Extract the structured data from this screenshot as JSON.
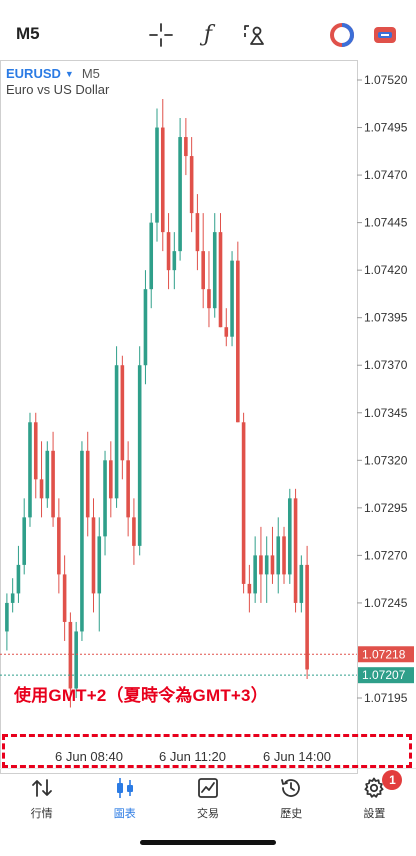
{
  "header": {
    "timeframe": "M5",
    "tools": [
      "crosshair-icon",
      "indicator-f-icon",
      "objects-icon",
      "one-click-trading-icon",
      "trade-icon"
    ],
    "indicator_glyph": "ƒ"
  },
  "chart": {
    "symbol": "EURUSD",
    "timeframe": "M5",
    "description": "Euro vs US Dollar"
  },
  "colors": {
    "bull": "#2f9f8a",
    "bear": "#e0514a",
    "bid_line": "#e0514a",
    "ask_line": "#2f9f8a",
    "accent": "#2b7be4",
    "annotation": "#e8001c"
  },
  "chart_data": {
    "type": "candlestick",
    "y_ticks": [
      "1.07520",
      "1.07495",
      "1.07470",
      "1.07445",
      "1.07420",
      "1.07395",
      "1.07370",
      "1.07345",
      "1.07320",
      "1.07295",
      "1.07270",
      "1.07245",
      "1.07195"
    ],
    "ylim": [
      1.0718,
      1.0753
    ],
    "x_ticks": [
      "6 Jun 08:40",
      "6 Jun 11:20",
      "6 Jun 14:00"
    ],
    "bid_price": "1.07218",
    "ask_price": "1.07207",
    "candles": [
      [
        1.0723,
        1.0725,
        1.0722,
        1.07245
      ],
      [
        1.07245,
        1.07258,
        1.0724,
        1.0725
      ],
      [
        1.0725,
        1.07275,
        1.07245,
        1.07265
      ],
      [
        1.07265,
        1.073,
        1.0726,
        1.0729
      ],
      [
        1.0729,
        1.07345,
        1.07285,
        1.0734
      ],
      [
        1.0734,
        1.07345,
        1.073,
        1.0731
      ],
      [
        1.0731,
        1.0733,
        1.0729,
        1.073
      ],
      [
        1.073,
        1.0733,
        1.07295,
        1.07325
      ],
      [
        1.07325,
        1.07335,
        1.07285,
        1.0729
      ],
      [
        1.0729,
        1.073,
        1.0725,
        1.0726
      ],
      [
        1.0726,
        1.0727,
        1.07225,
        1.07235
      ],
      [
        1.07235,
        1.0724,
        1.0719,
        1.072
      ],
      [
        1.072,
        1.07235,
        1.07195,
        1.0723
      ],
      [
        1.0723,
        1.0733,
        1.07225,
        1.07325
      ],
      [
        1.07325,
        1.07335,
        1.0728,
        1.0729
      ],
      [
        1.0729,
        1.073,
        1.0724,
        1.0725
      ],
      [
        1.0725,
        1.0729,
        1.0723,
        1.0728
      ],
      [
        1.0728,
        1.07325,
        1.0727,
        1.0732
      ],
      [
        1.0732,
        1.0733,
        1.0729,
        1.073
      ],
      [
        1.073,
        1.0738,
        1.07295,
        1.0737
      ],
      [
        1.0737,
        1.07375,
        1.0731,
        1.0732
      ],
      [
        1.0732,
        1.0733,
        1.0728,
        1.0729
      ],
      [
        1.0729,
        1.073,
        1.07265,
        1.07275
      ],
      [
        1.07275,
        1.0738,
        1.0727,
        1.0737
      ],
      [
        1.0737,
        1.0742,
        1.0736,
        1.0741
      ],
      [
        1.0741,
        1.0745,
        1.074,
        1.07445
      ],
      [
        1.07445,
        1.07505,
        1.07435,
        1.07495
      ],
      [
        1.07495,
        1.0751,
        1.0743,
        1.0744
      ],
      [
        1.0744,
        1.0745,
        1.0741,
        1.0742
      ],
      [
        1.0742,
        1.0744,
        1.0741,
        1.0743
      ],
      [
        1.0743,
        1.075,
        1.07425,
        1.0749
      ],
      [
        1.0749,
        1.075,
        1.0747,
        1.0748
      ],
      [
        1.0748,
        1.0749,
        1.0744,
        1.0745
      ],
      [
        1.0745,
        1.0746,
        1.0742,
        1.0743
      ],
      [
        1.0743,
        1.0745,
        1.074,
        1.0741
      ],
      [
        1.0741,
        1.0743,
        1.0739,
        1.074
      ],
      [
        1.074,
        1.0745,
        1.07395,
        1.0744
      ],
      [
        1.0744,
        1.0745,
        1.0739,
        1.0739
      ],
      [
        1.0739,
        1.074,
        1.0738,
        1.07385
      ],
      [
        1.07385,
        1.0743,
        1.0738,
        1.07425
      ],
      [
        1.07425,
        1.07435,
        1.0734,
        1.0734
      ],
      [
        1.0734,
        1.07345,
        1.0725,
        1.07255
      ],
      [
        1.07255,
        1.07265,
        1.0724,
        1.0725
      ],
      [
        1.0725,
        1.0728,
        1.07245,
        1.0727
      ],
      [
        1.0727,
        1.07285,
        1.07245,
        1.0726
      ],
      [
        1.0726,
        1.0728,
        1.07245,
        1.0727
      ],
      [
        1.0727,
        1.07285,
        1.07255,
        1.0726
      ],
      [
        1.0726,
        1.0729,
        1.0725,
        1.0728
      ],
      [
        1.0728,
        1.07285,
        1.07255,
        1.0726
      ],
      [
        1.0726,
        1.07305,
        1.07255,
        1.073
      ],
      [
        1.073,
        1.07305,
        1.0724,
        1.07245
      ],
      [
        1.07245,
        1.0727,
        1.0724,
        1.07265
      ],
      [
        1.07265,
        1.07275,
        1.07205,
        1.0721
      ]
    ]
  },
  "annotation": "使用GMT+2（夏時令為GMT+3）",
  "nav": [
    {
      "label": "行情",
      "icon": "quotes-icon",
      "active": false
    },
    {
      "label": "圖表",
      "icon": "chart-icon",
      "active": true
    },
    {
      "label": "交易",
      "icon": "trade-chart-icon",
      "active": false
    },
    {
      "label": "歷史",
      "icon": "history-icon",
      "active": false
    },
    {
      "label": "設置",
      "icon": "settings-icon",
      "active": false,
      "badge": "1"
    }
  ]
}
